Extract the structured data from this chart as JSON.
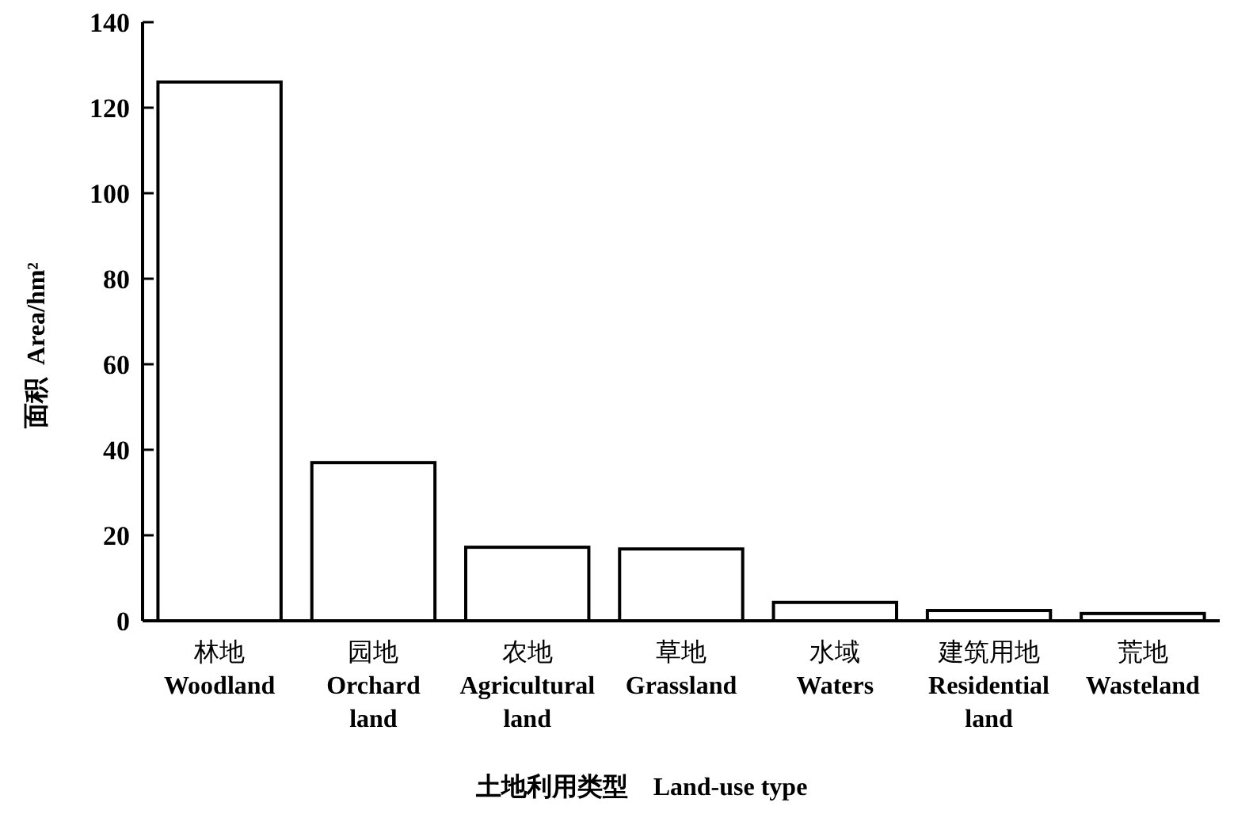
{
  "chart_data": {
    "type": "bar",
    "categories": [
      "林地\nWoodland",
      "园地\nOrchard\nland",
      "农地\nAgricultural\nland",
      "草地\nGrassland",
      "水域\nWaters",
      "建筑用地\nResidential\nland",
      "荒地\nWasteland"
    ],
    "values": [
      126,
      37,
      17.2,
      16.8,
      4.3,
      2.4,
      1.7
    ],
    "color": "#ffffff",
    "xlabel": "土地利用类型    Land-use type",
    "ylabel": "面积  Area/hm²",
    "ylim": [
      0,
      140
    ],
    "yticks": [
      0,
      20,
      40,
      60,
      80,
      100,
      120,
      140
    ],
    "grid": false
  }
}
